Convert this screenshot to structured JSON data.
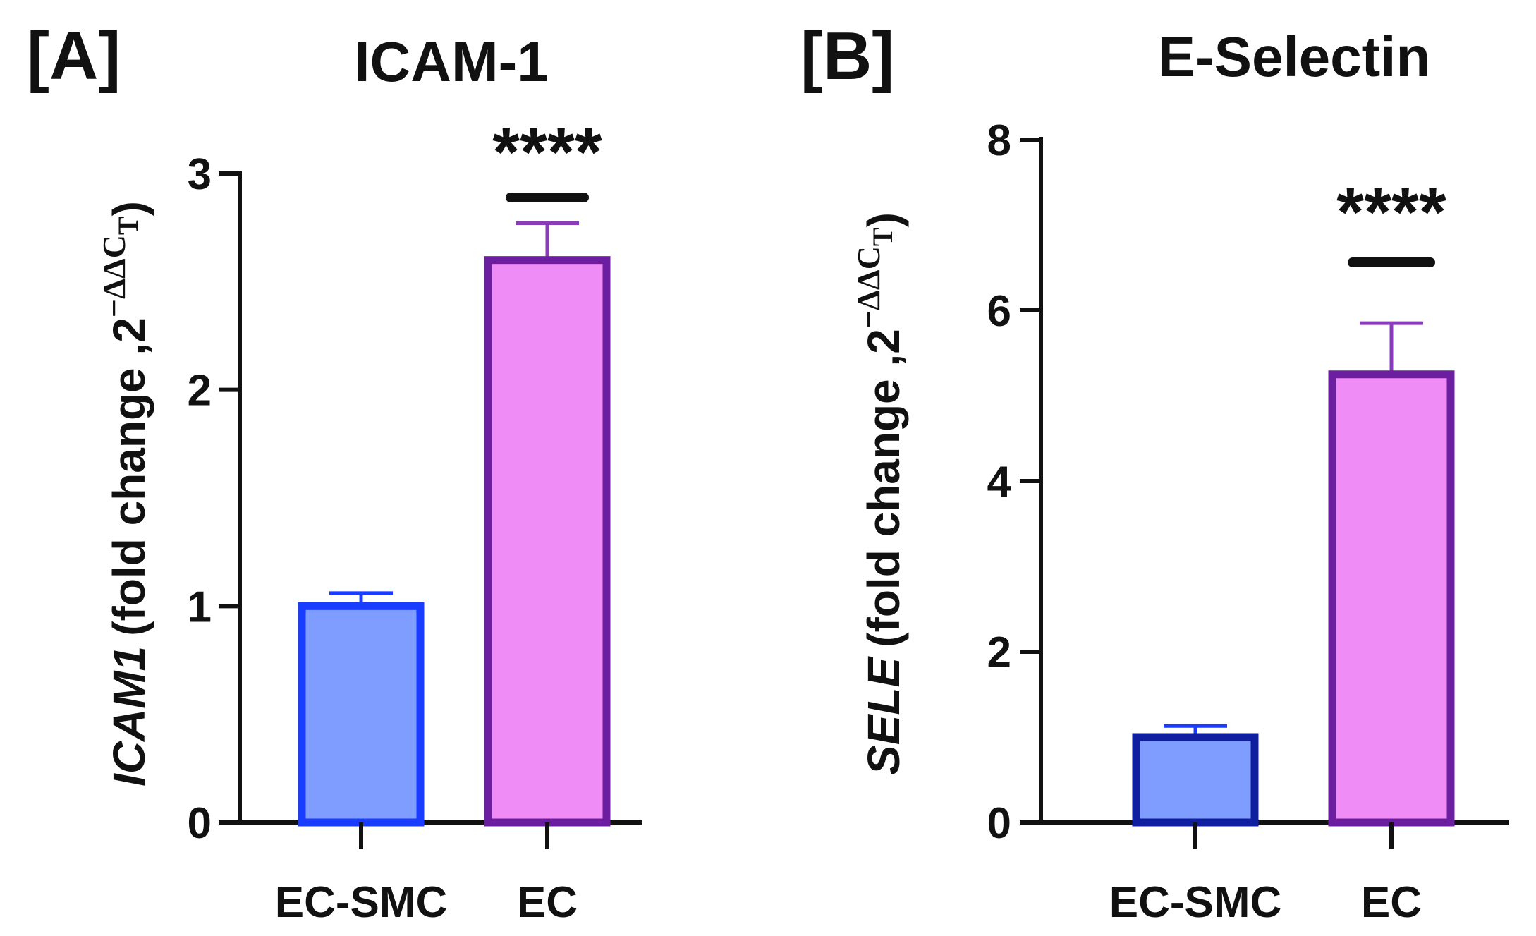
{
  "figure": {
    "panel_labels": [
      "[A]",
      "[B]"
    ]
  },
  "chart_data": [
    {
      "type": "bar",
      "panel_label": "[A]",
      "title": "ICAM-1",
      "categories": [
        "EC-SMC",
        "EC"
      ],
      "values": [
        1.0,
        2.6
      ],
      "errors": [
        0.06,
        0.17
      ],
      "ylim": [
        0,
        3
      ],
      "yticks": [
        0,
        1,
        2,
        3
      ],
      "ylabel_gene": "ICAM1",
      "ylabel_main": "(fold change ,2",
      "ylabel_exp": "−ΔΔC",
      "ylabel_sub": "T",
      "ylabel_close": ")",
      "significance": "****",
      "xlabel": "",
      "colors": {
        "fill": [
          "#7f9cff",
          "#f08cf5"
        ],
        "stroke": [
          "#1a3cff",
          "#6b1fa0"
        ],
        "error": [
          "#1a3cff",
          "#8a3db8"
        ]
      }
    },
    {
      "type": "bar",
      "panel_label": "[B]",
      "title": "E-Selectin",
      "categories": [
        "EC-SMC",
        "EC"
      ],
      "values": [
        1.0,
        5.25
      ],
      "errors": [
        0.13,
        0.6
      ],
      "ylim": [
        0,
        8
      ],
      "yticks": [
        0,
        2,
        4,
        6,
        8
      ],
      "ylabel_gene": "SELE",
      "ylabel_main": "(fold change ,2",
      "ylabel_exp": "−ΔΔC",
      "ylabel_sub": "T",
      "ylabel_close": ")",
      "significance": "****",
      "xlabel": "",
      "colors": {
        "fill": [
          "#7f9cff",
          "#f08cf5"
        ],
        "stroke": [
          "#0f1fa0",
          "#6b1fa0"
        ],
        "error": [
          "#1a3cff",
          "#8a3db8"
        ]
      }
    }
  ]
}
